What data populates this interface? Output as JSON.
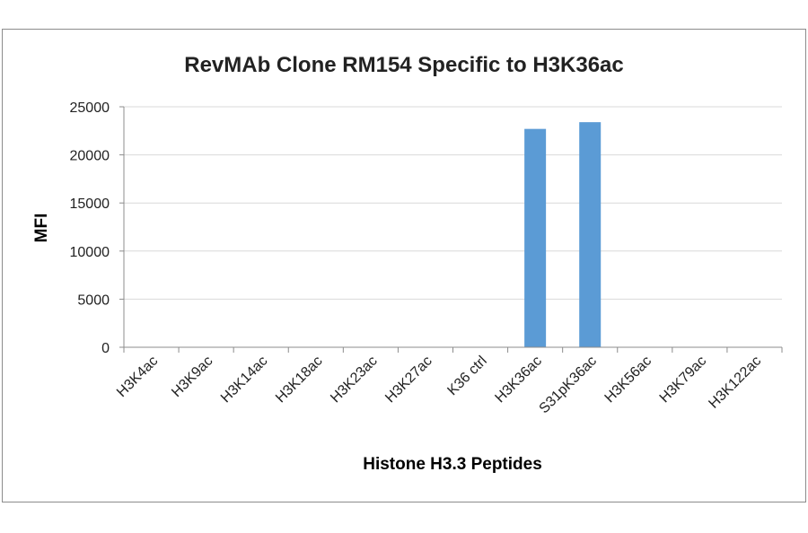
{
  "chart_data": {
    "type": "bar",
    "title": "RevMAb Clone RM154 Specific to H3K36ac",
    "xlabel": "Histone H3.3 Peptides",
    "ylabel": "MFI",
    "categories": [
      "H3K4ac",
      "H3K9ac",
      "H3K14ac",
      "H3K18ac",
      "H3K23ac",
      "H3K27ac",
      "K36 ctrl",
      "H3K36ac",
      "S31pK36ac",
      "H3K56ac",
      "H3K79ac",
      "H3K122ac"
    ],
    "series": [
      {
        "values": [
          0,
          0,
          0,
          0,
          0,
          0,
          0,
          22700,
          23400,
          0,
          0,
          0
        ]
      }
    ],
    "ylim": [
      0,
      25000
    ],
    "yticks": [
      0,
      5000,
      10000,
      15000,
      20000,
      25000
    ],
    "grid": true,
    "legend": "none",
    "bar_color": "#5b9bd5",
    "grid_color": "#d9d9d9",
    "axis_color": "#8c8c8c"
  }
}
